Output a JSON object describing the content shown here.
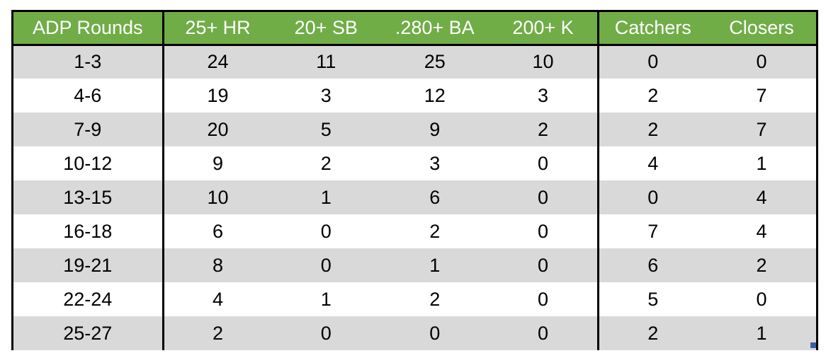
{
  "table": {
    "headers": [
      "ADP Rounds",
      "25+ HR",
      "20+ SB",
      ".280+ BA",
      "200+ K",
      "Catchers",
      "Closers"
    ],
    "rows": [
      [
        "1-3",
        "24",
        "11",
        "25",
        "10",
        "0",
        "0"
      ],
      [
        "4-6",
        "19",
        "3",
        "12",
        "3",
        "2",
        "7"
      ],
      [
        "7-9",
        "20",
        "5",
        "9",
        "2",
        "2",
        "7"
      ],
      [
        "10-12",
        "9",
        "2",
        "3",
        "0",
        "4",
        "1"
      ],
      [
        "13-15",
        "10",
        "1",
        "6",
        "0",
        "0",
        "4"
      ],
      [
        "16-18",
        "6",
        "0",
        "2",
        "0",
        "7",
        "4"
      ],
      [
        "19-21",
        "8",
        "0",
        "1",
        "0",
        "6",
        "2"
      ],
      [
        "22-24",
        "4",
        "1",
        "2",
        "0",
        "5",
        "0"
      ],
      [
        "25-27",
        "2",
        "0",
        "0",
        "0",
        "2",
        "1"
      ]
    ]
  },
  "colors": {
    "header_background": "#70ad47",
    "header_text": "#ffffff",
    "band_row": "#d9d9d9",
    "plain_row": "#ffffff",
    "border": "#000000",
    "selection_handle": "#3b5ea8"
  }
}
